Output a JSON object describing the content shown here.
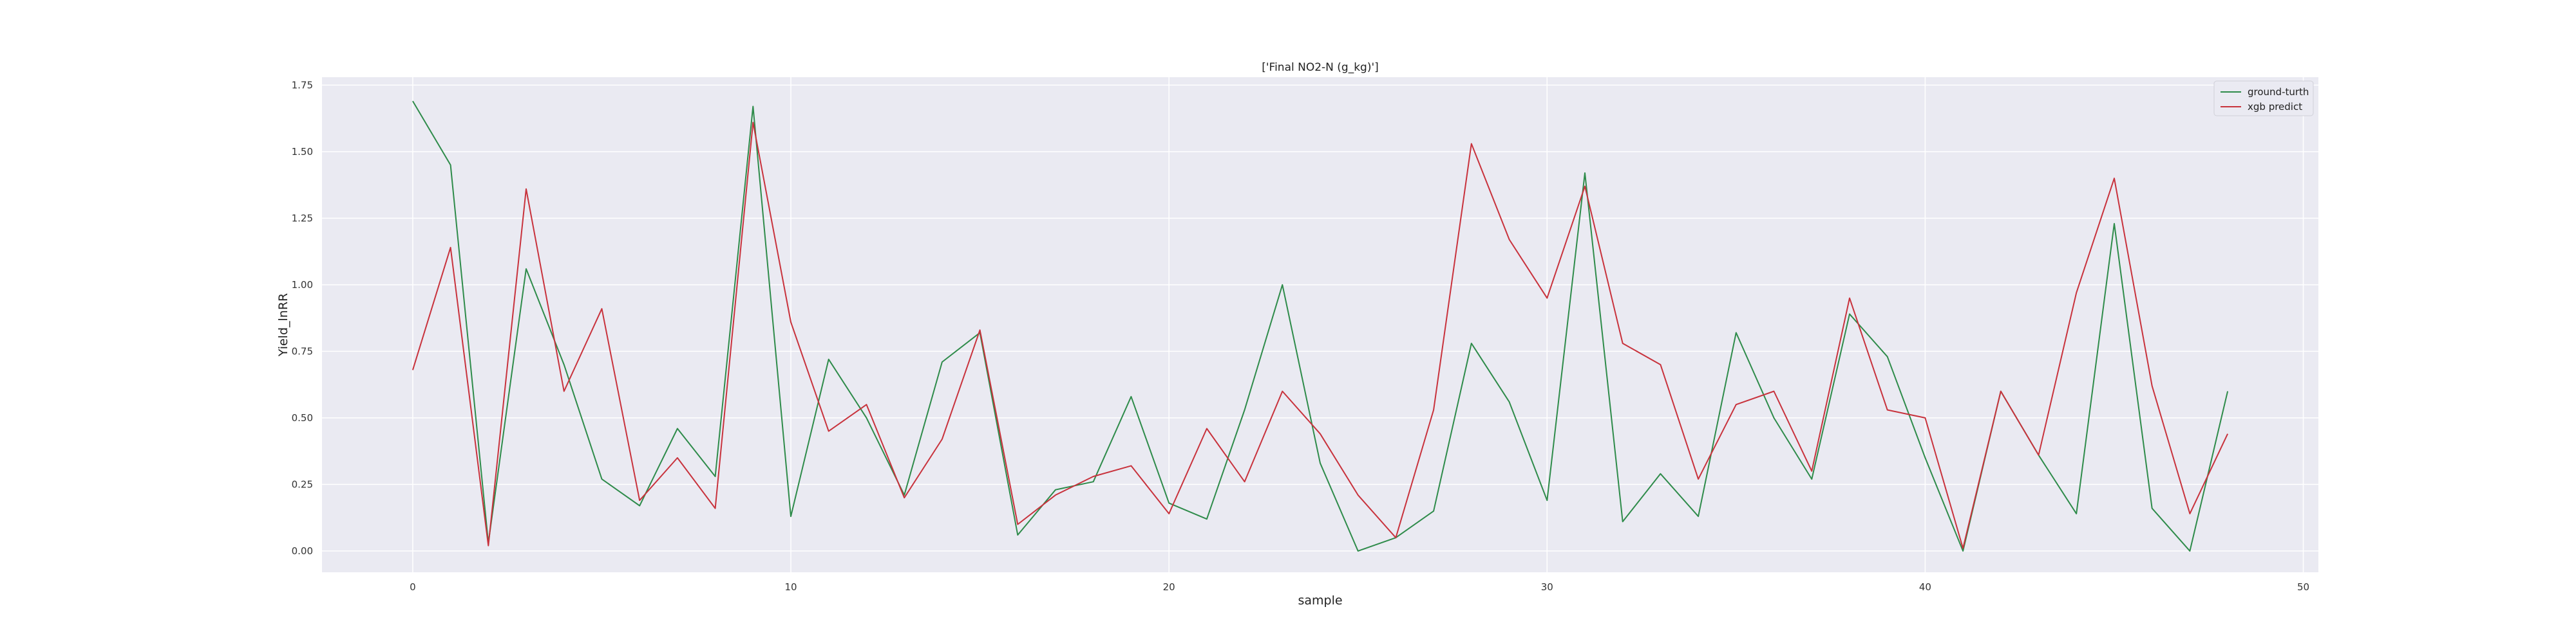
{
  "chart_data": {
    "type": "line",
    "title": "['Final NO2-N (g_kg)']",
    "xlabel": "sample",
    "ylabel": "Yield_lnRR",
    "xlim": [
      -2.4,
      50.4
    ],
    "ylim": [
      -0.08,
      1.78
    ],
    "x_ticks": [
      0,
      10,
      20,
      30,
      40,
      50
    ],
    "y_ticks": [
      0.0,
      0.25,
      0.5,
      0.75,
      1.0,
      1.25,
      1.5,
      1.75
    ],
    "x_tick_labels": [
      "0",
      "10",
      "20",
      "30",
      "40",
      "50"
    ],
    "y_tick_labels": [
      "0.00",
      "0.25",
      "0.50",
      "0.75",
      "1.00",
      "1.25",
      "1.50",
      "1.75"
    ],
    "grid": true,
    "legend_position": "top-right",
    "x": [
      0,
      1,
      2,
      3,
      4,
      5,
      6,
      7,
      8,
      9,
      10,
      11,
      12,
      13,
      14,
      15,
      16,
      17,
      18,
      19,
      20,
      21,
      22,
      23,
      24,
      25,
      26,
      27,
      28,
      29,
      30,
      31,
      32,
      33,
      34,
      35,
      36,
      37,
      38,
      39,
      40,
      41,
      42,
      43,
      44,
      45,
      46,
      47,
      48
    ],
    "series": [
      {
        "name": "ground-turth",
        "color": "#2e8b4a",
        "values": [
          1.69,
          1.45,
          0.03,
          1.06,
          0.7,
          0.27,
          0.17,
          0.46,
          0.28,
          1.67,
          0.13,
          0.72,
          0.5,
          0.21,
          0.71,
          0.82,
          0.06,
          0.23,
          0.26,
          0.58,
          0.18,
          0.12,
          0.53,
          1.0,
          0.33,
          0.0,
          0.05,
          0.15,
          0.78,
          0.56,
          0.19,
          1.42,
          0.11,
          0.29,
          0.13,
          0.82,
          0.5,
          0.27,
          0.89,
          0.73,
          0.35,
          0.0,
          0.6,
          0.36,
          0.14,
          1.23,
          0.16,
          0.0,
          0.6
        ]
      },
      {
        "name": "xgb predict",
        "color": "#c8323c",
        "values": [
          0.68,
          1.14,
          0.02,
          1.36,
          0.6,
          0.91,
          0.19,
          0.35,
          0.16,
          1.61,
          0.86,
          0.45,
          0.55,
          0.2,
          0.42,
          0.83,
          0.1,
          0.21,
          0.28,
          0.32,
          0.14,
          0.46,
          0.26,
          0.6,
          0.44,
          0.21,
          0.05,
          0.53,
          1.53,
          1.17,
          0.95,
          1.37,
          0.78,
          0.7,
          0.27,
          0.55,
          0.6,
          0.3,
          0.95,
          0.53,
          0.5,
          0.01,
          0.6,
          0.36,
          0.97,
          1.4,
          0.62,
          0.14,
          0.44
        ]
      }
    ]
  },
  "style": {
    "plot_background": "#eaeaf2",
    "grid_color": "#ffffff"
  }
}
